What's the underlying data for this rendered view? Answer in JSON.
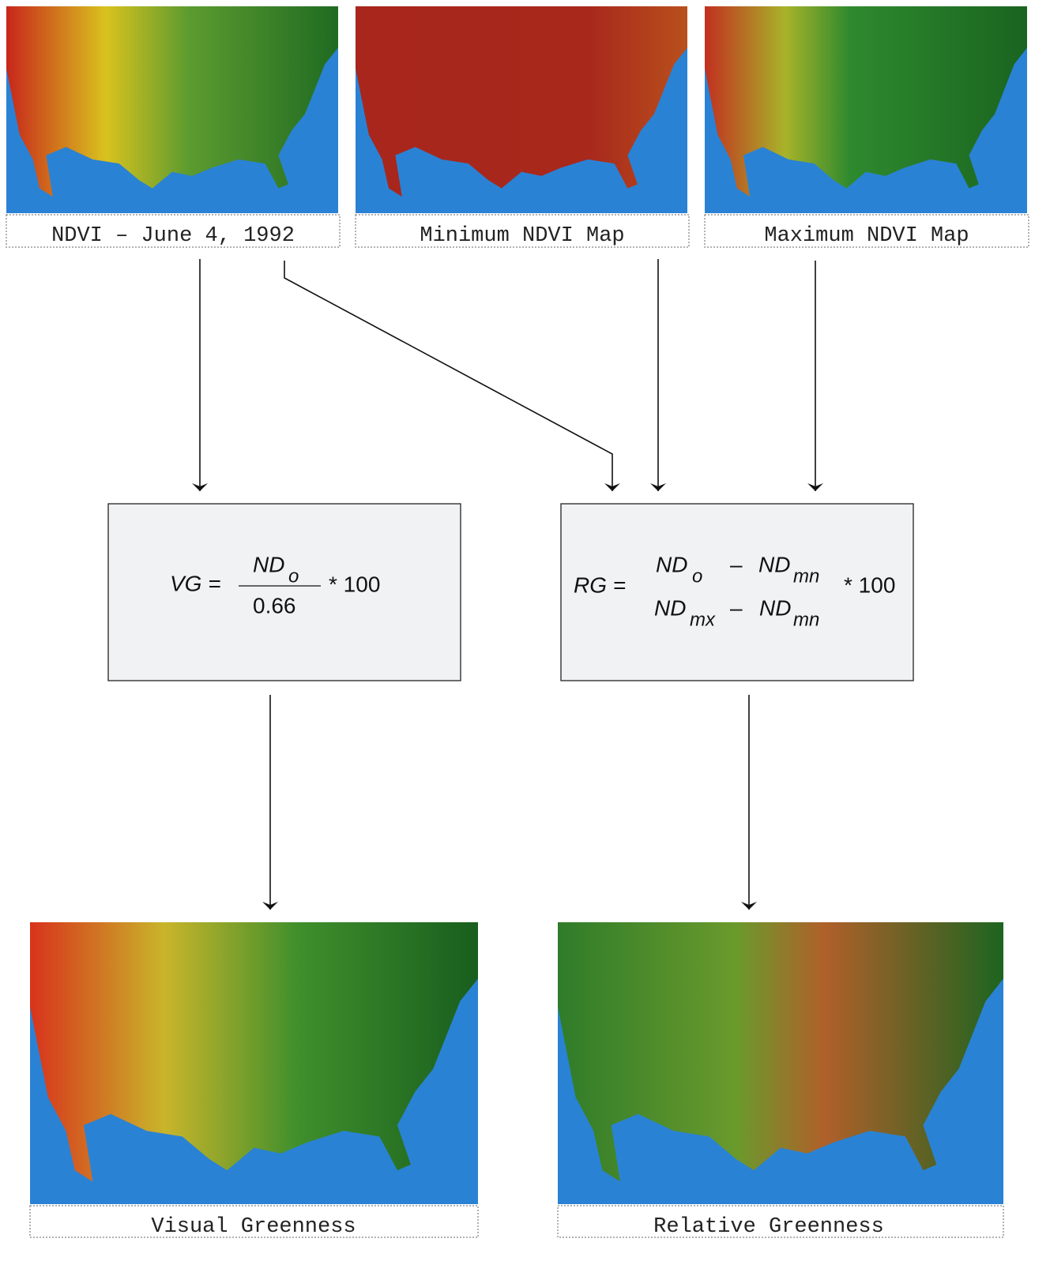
{
  "maps": [
    {
      "caption": "NDVI – June 4, 1992"
    },
    {
      "caption": "Minimum NDVI Map"
    },
    {
      "caption": "Maximum NDVI Map"
    },
    {
      "caption": "Visual Greenness"
    },
    {
      "caption": "Relative Greenness"
    }
  ],
  "formulas": [
    {
      "lhs": "VG =",
      "numerator": {
        "base": "ND",
        "sub": "o"
      },
      "denominator": "0.66",
      "factor": "* 100"
    },
    {
      "lhs": "RG =",
      "numerator": {
        "base": "ND",
        "sub": "o",
        "minus": "–",
        "base2": "ND",
        "sub2": "mn"
      },
      "denominator": {
        "base": "ND",
        "sub": "mx",
        "minus": "–",
        "base2": "ND",
        "sub2": "mn"
      },
      "factor": "* 100"
    }
  ]
}
